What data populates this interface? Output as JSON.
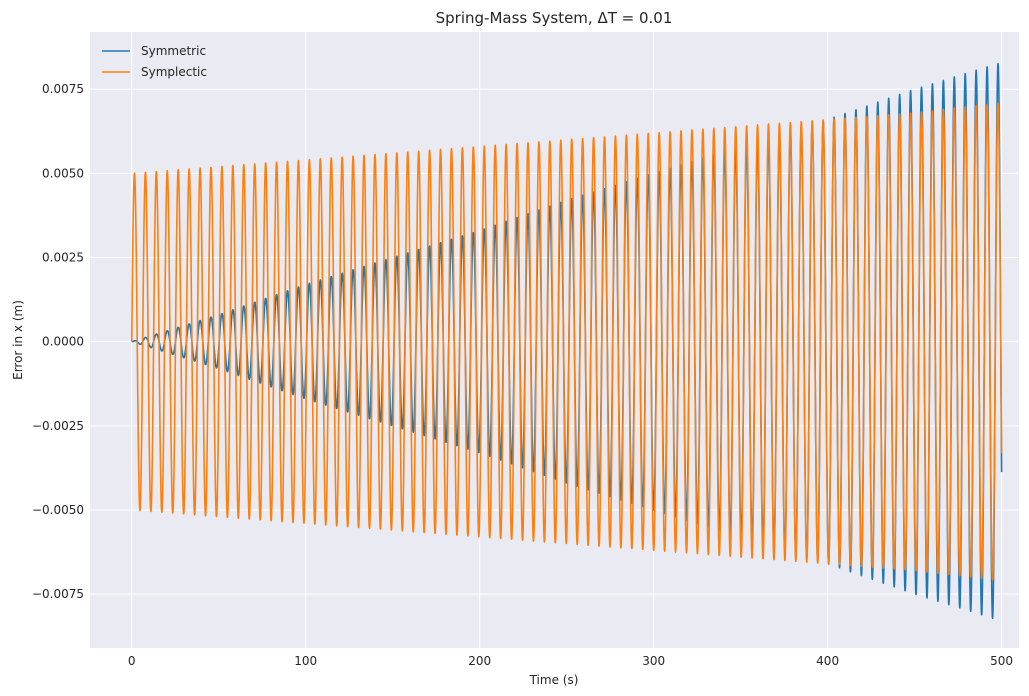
{
  "chart_data": {
    "type": "line",
    "title": "Spring-Mass System, ΔT = 0.01",
    "xlabel": "Time (s)",
    "ylabel": "Error in x (m)",
    "xlim": [
      -24,
      510
    ],
    "ylim": [
      -0.0091,
      0.0092
    ],
    "xticks": [
      0,
      100,
      200,
      300,
      400,
      500
    ],
    "xtick_labels": [
      "0",
      "100",
      "200",
      "300",
      "400",
      "500"
    ],
    "yticks": [
      -0.0075,
      -0.005,
      -0.0025,
      0.0,
      0.0025,
      0.005,
      0.0075
    ],
    "ytick_labels": [
      "−0.0075",
      "−0.0050",
      "−0.0025",
      "0.0000",
      "0.0025",
      "0.0050",
      "0.0075"
    ],
    "grid": true,
    "legend_position": "top-left",
    "background_color": "#eaeaf2",
    "series": [
      {
        "name": "Symmetric",
        "color": "#1f77b4",
        "model": "growing-oscillation",
        "period_s": 6.2832,
        "x": [
          0,
          50,
          100,
          150,
          200,
          250,
          300,
          350,
          400,
          450,
          500
        ],
        "envelope": [
          0.0,
          0.0008,
          0.0017,
          0.0025,
          0.0033,
          0.0042,
          0.005,
          0.0058,
          0.0066,
          0.0075,
          0.0083
        ]
      },
      {
        "name": "Symplectic",
        "color": "#ff7f0e",
        "model": "oscillation",
        "period_s": 6.2832,
        "x": [
          0,
          50,
          100,
          150,
          200,
          250,
          300,
          350,
          400,
          450,
          500
        ],
        "envelope": [
          0.005,
          0.0052,
          0.0054,
          0.0056,
          0.0058,
          0.006,
          0.0062,
          0.0064,
          0.0066,
          0.0068,
          0.0071
        ]
      }
    ]
  }
}
